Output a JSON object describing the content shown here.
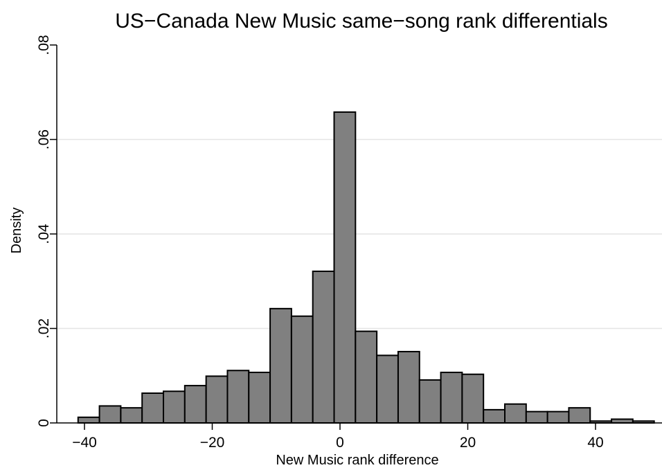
{
  "chart_data": {
    "type": "bar",
    "title": "US−Canada New Music same−song rank differentials",
    "xlabel": "New Music rank difference",
    "ylabel": "Density",
    "xlim": [
      -42.5,
      50
    ],
    "ylim": [
      0,
      0.08
    ],
    "x_ticks": [
      {
        "value": -40,
        "label": "−40"
      },
      {
        "value": -20,
        "label": "−20"
      },
      {
        "value": 0,
        "label": "0"
      },
      {
        "value": 20,
        "label": "20"
      },
      {
        "value": 40,
        "label": "40"
      }
    ],
    "y_ticks": [
      {
        "value": 0,
        "label": "0"
      },
      {
        "value": 0.02,
        "label": ".02"
      },
      {
        "value": 0.04,
        "label": ".04"
      },
      {
        "value": 0.06,
        "label": ".06"
      },
      {
        "value": 0.08,
        "label": ".08"
      }
    ],
    "grid": true,
    "bin_start": -41,
    "bin_width": 3.34,
    "values": [
      0.0012,
      0.0036,
      0.0032,
      0.0063,
      0.0067,
      0.0079,
      0.0099,
      0.0111,
      0.0107,
      0.0242,
      0.0226,
      0.0321,
      0.0658,
      0.0194,
      0.0143,
      0.0151,
      0.0091,
      0.0107,
      0.0103,
      0.0028,
      0.004,
      0.0024,
      0.0024,
      0.0032,
      0.0004,
      0.0008,
      0.0004
    ]
  }
}
